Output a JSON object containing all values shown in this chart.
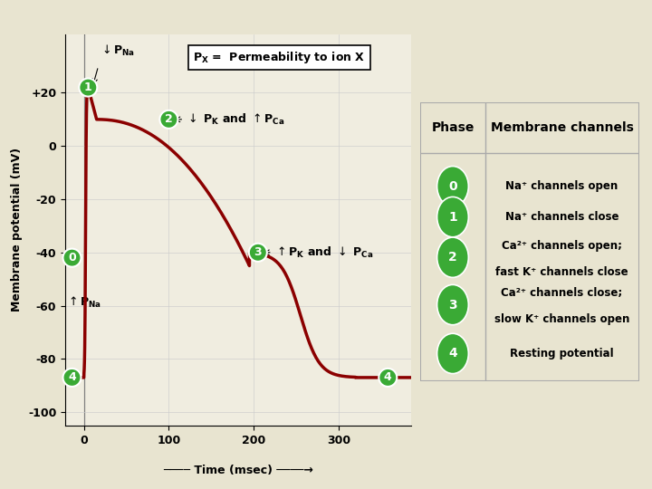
{
  "bg_color": "#e8e4d0",
  "plot_bg_color": "#f0ede0",
  "curve_color": "#8b0000",
  "curve_lw": 2.5,
  "ylim": [
    -105,
    42
  ],
  "xlim": [
    -22,
    385
  ],
  "yticks": [
    -100,
    -80,
    -60,
    -40,
    -20,
    0,
    20
  ],
  "ytick_labels": [
    "-100",
    "-80",
    "-60",
    "-40",
    "-20",
    "0",
    "+20"
  ],
  "xticks": [
    0,
    100,
    200,
    300
  ],
  "xlabel": "Time (msec)",
  "ylabel": "Membrane potential (mV)",
  "green_color": "#3aaa35",
  "table_header_col1": "Phase",
  "table_header_col2": "Membrane channels",
  "table_rows": [
    {
      "phase": "0",
      "text1": "Na⁺ channels open",
      "text2": ""
    },
    {
      "phase": "1",
      "text1": "Na⁺ channels close",
      "text2": ""
    },
    {
      "phase": "2",
      "text1": "Ca²⁺ channels open;",
      "text2": "fast K⁺ channels close"
    },
    {
      "phase": "3",
      "text1": "Ca²⁺ channels close;",
      "text2": "slow K⁺ channels open"
    },
    {
      "phase": "4",
      "text1": "Resting potential",
      "text2": ""
    }
  ]
}
